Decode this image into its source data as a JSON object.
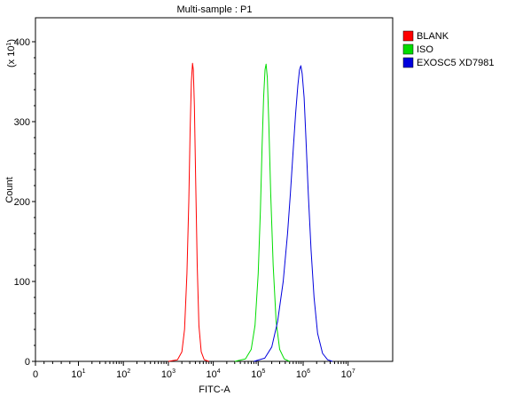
{
  "chart_data": {
    "type": "line",
    "title": "Multi-sample : P1",
    "xlabel": "FITC-A",
    "ylabel": "Count",
    "y_multiplier_label": {
      "base": "(x 10",
      "exp": "1",
      "close": ")"
    },
    "x_scale": "log",
    "xlim": [
      0,
      10000000
    ],
    "ylim": [
      0,
      430
    ],
    "x_ticks": [
      {
        "value": 0,
        "base": "0",
        "exp": ""
      },
      {
        "value": 10,
        "base": "10",
        "exp": "1"
      },
      {
        "value": 100,
        "base": "10",
        "exp": "2"
      },
      {
        "value": 1000,
        "base": "10",
        "exp": "3"
      },
      {
        "value": 10000,
        "base": "10",
        "exp": "4"
      },
      {
        "value": 100000,
        "base": "10",
        "exp": "5"
      },
      {
        "value": 1000000,
        "base": "10",
        "exp": "6"
      },
      {
        "value": 10000000,
        "base": "10",
        "exp": "7"
      }
    ],
    "y_ticks": [
      0,
      100,
      200,
      300,
      400
    ],
    "grid": false,
    "legend_position": "top-right",
    "series": [
      {
        "name": "BLANK",
        "color": "#ff0000",
        "points": [
          [
            1000,
            0
          ],
          [
            1600,
            2
          ],
          [
            2000,
            12
          ],
          [
            2300,
            40
          ],
          [
            2600,
            110
          ],
          [
            2850,
            200
          ],
          [
            3050,
            290
          ],
          [
            3250,
            350
          ],
          [
            3450,
            373
          ],
          [
            3600,
            365
          ],
          [
            3800,
            320
          ],
          [
            4050,
            230
          ],
          [
            4400,
            120
          ],
          [
            4800,
            45
          ],
          [
            5400,
            12
          ],
          [
            6300,
            2
          ],
          [
            8000,
            0
          ]
        ]
      },
      {
        "name": "ISO",
        "color": "#00dd00",
        "points": [
          [
            30000,
            0
          ],
          [
            52000,
            3
          ],
          [
            70000,
            15
          ],
          [
            85000,
            45
          ],
          [
            100000,
            110
          ],
          [
            112000,
            190
          ],
          [
            122000,
            270
          ],
          [
            132000,
            330
          ],
          [
            142000,
            365
          ],
          [
            150000,
            372
          ],
          [
            160000,
            355
          ],
          [
            172000,
            300
          ],
          [
            190000,
            210
          ],
          [
            215000,
            120
          ],
          [
            250000,
            50
          ],
          [
            300000,
            15
          ],
          [
            380000,
            3
          ],
          [
            500000,
            0
          ]
        ]
      },
      {
        "name": "EXOSC5 XD7981",
        "color": "#0000dd",
        "points": [
          [
            80000,
            0
          ],
          [
            140000,
            4
          ],
          [
            200000,
            18
          ],
          [
            270000,
            50
          ],
          [
            360000,
            100
          ],
          [
            450000,
            160
          ],
          [
            520000,
            210
          ],
          [
            600000,
            265
          ],
          [
            680000,
            310
          ],
          [
            760000,
            345
          ],
          [
            830000,
            365
          ],
          [
            890000,
            370
          ],
          [
            950000,
            360
          ],
          [
            1050000,
            330
          ],
          [
            1150000,
            280
          ],
          [
            1300000,
            210
          ],
          [
            1500000,
            140
          ],
          [
            1750000,
            80
          ],
          [
            2100000,
            35
          ],
          [
            2700000,
            10
          ],
          [
            3500000,
            2
          ],
          [
            4500000,
            0
          ]
        ]
      }
    ]
  }
}
